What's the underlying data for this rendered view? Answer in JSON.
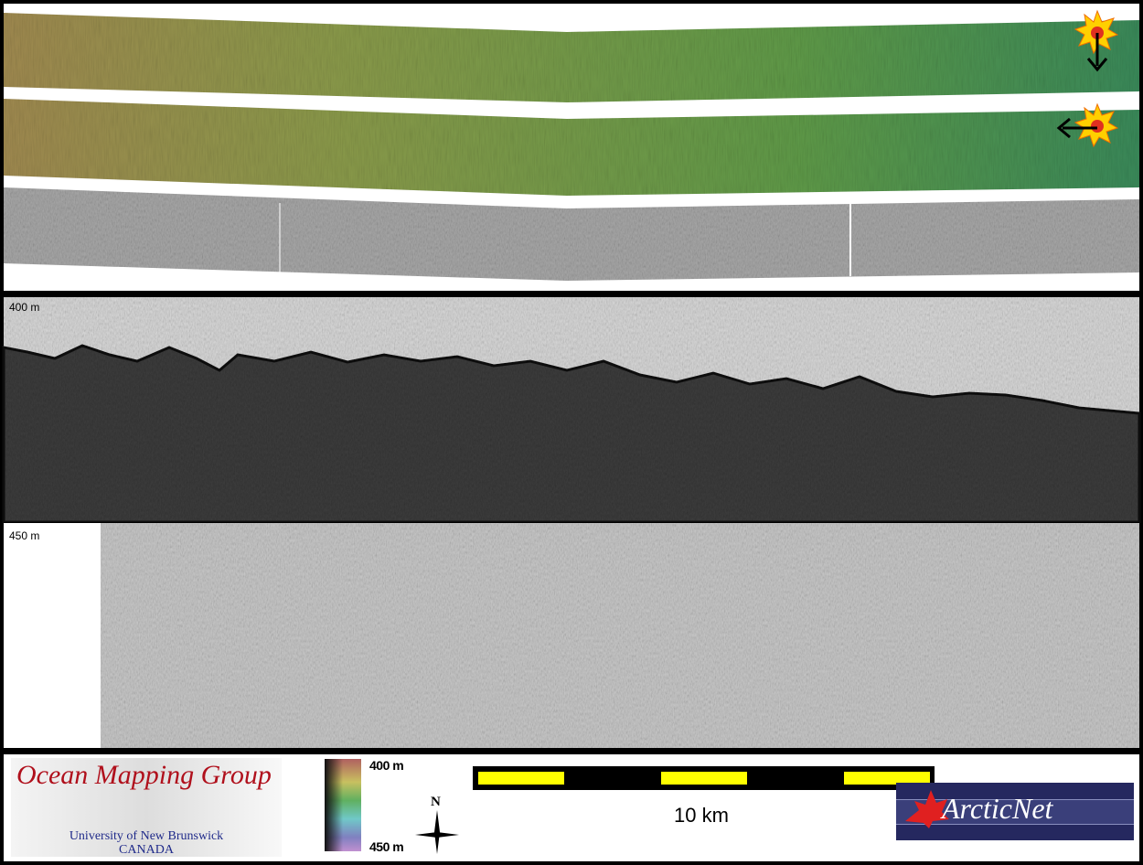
{
  "profile": {
    "depth_top_label": "400 m",
    "depth_bottom_label": "450 m"
  },
  "legend": {
    "logo_left": {
      "title": "Ocean Mapping Group",
      "line1": "University of New Brunswick",
      "line2": "CANADA"
    },
    "colorbar": {
      "min_label": "400 m",
      "max_label": "450 m",
      "colors": [
        "#b06060",
        "#c8c060",
        "#60b060",
        "#70c8c8",
        "#8080c0",
        "#c090d0"
      ]
    },
    "north_label": "N",
    "scale_bar_label": "10 km",
    "logo_right": "ArcticNet"
  },
  "illumination_icons": [
    "sun-icon",
    "arrow-down-icon",
    "sun-icon",
    "arrow-left-icon"
  ]
}
